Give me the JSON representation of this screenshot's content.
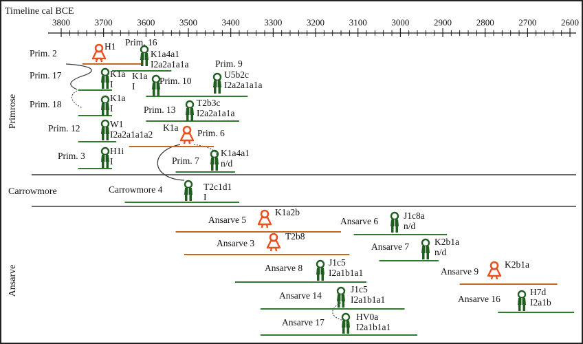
{
  "title": "Timeline cal BCE",
  "axis": {
    "ticks": [
      "3800",
      "3700",
      "3600",
      "3500",
      "3400",
      "3300",
      "3200",
      "3100",
      "3000",
      "2900",
      "2800",
      "2700",
      "2600"
    ]
  },
  "colors": {
    "female": "#e8501e",
    "male": "#1f5e1f",
    "range_female": "#c8661e",
    "range_male": "#2f7a2f"
  },
  "groups": [
    {
      "id": "primrose",
      "label": "Primrose"
    },
    {
      "id": "carrowmore",
      "label": "Carrowmore"
    },
    {
      "id": "ansarve",
      "label": "Ansarve"
    }
  ],
  "individuals": [
    {
      "id": "prim2",
      "name": "Prim. 2",
      "sex": "female",
      "codes": [
        "H1"
      ]
    },
    {
      "id": "prim16",
      "name": "Prim. 16",
      "sex": "male",
      "codes": [
        "K1a4a1",
        "I2a2a1a1a"
      ]
    },
    {
      "id": "prim17",
      "name": "Prim. 17",
      "sex": "male",
      "codes": [
        "K1a",
        "I"
      ]
    },
    {
      "id": "prim10",
      "name": "Prim. 10",
      "sex": "male",
      "codes": [
        "K1a",
        "I"
      ]
    },
    {
      "id": "prim9",
      "name": "Prim. 9",
      "sex": "male",
      "codes": [
        "U5b2c",
        "I2a2a1a1a"
      ]
    },
    {
      "id": "prim18",
      "name": "Prim. 18",
      "sex": "male",
      "codes": [
        "K1a",
        "I"
      ]
    },
    {
      "id": "prim13",
      "name": "Prim. 13",
      "sex": "male",
      "codes": [
        "T2b3c",
        "I2a2a1a1a"
      ]
    },
    {
      "id": "prim12",
      "name": "Prim. 12",
      "sex": "male",
      "codes": [
        "W1",
        "I2a2a1a1a2"
      ]
    },
    {
      "id": "prim6",
      "name": "Prim. 6",
      "sex": "female",
      "codes": [
        "K1a"
      ]
    },
    {
      "id": "prim3",
      "name": "Prim. 3",
      "sex": "male",
      "codes": [
        "H1i",
        "I"
      ]
    },
    {
      "id": "prim7",
      "name": "Prim. 7",
      "sex": "male",
      "codes": [
        "K1a4a1",
        "n/d"
      ]
    },
    {
      "id": "carrowmore4",
      "name": "Carrowmore 4",
      "sex": "male",
      "codes": [
        "T2c1d1",
        "I"
      ]
    },
    {
      "id": "ansarve5",
      "name": "Ansarve 5",
      "sex": "female",
      "codes": [
        "K1a2b"
      ]
    },
    {
      "id": "ansarve6",
      "name": "Ansarve 6",
      "sex": "male",
      "codes": [
        "J1c8a",
        "n/d"
      ]
    },
    {
      "id": "ansarve3",
      "name": "Ansarve 3",
      "sex": "female",
      "codes": [
        "T2b8"
      ]
    },
    {
      "id": "ansarve7",
      "name": "Ansarve 7",
      "sex": "male",
      "codes": [
        "K2b1a",
        "n/d"
      ]
    },
    {
      "id": "ansarve8",
      "name": "Ansarve 8",
      "sex": "male",
      "codes": [
        "J1c5",
        "I2a1b1a1"
      ]
    },
    {
      "id": "ansarve9",
      "name": "Ansarve 9",
      "sex": "female",
      "codes": [
        "K2b1a"
      ]
    },
    {
      "id": "ansarve14",
      "name": "Ansarve 14",
      "sex": "male",
      "codes": [
        "J1c5",
        "I2a1b1a1"
      ]
    },
    {
      "id": "ansarve16",
      "name": "Ansarve 16",
      "sex": "male",
      "codes": [
        "H7d",
        "I2a1b"
      ]
    },
    {
      "id": "ansarve17",
      "name": "Ansarve 17",
      "sex": "male",
      "codes": [
        "HV0a",
        "I2a1b1a1"
      ]
    }
  ],
  "ranges": [
    {
      "id": "prim2",
      "from": 3750,
      "to": 3610
    },
    {
      "id": "prim16",
      "from": 3680,
      "to": 3540
    },
    {
      "id": "prim17",
      "from": 3760,
      "to": 3680
    },
    {
      "id": "prim10",
      "from": 3600,
      "to": 3510
    },
    {
      "id": "prim9",
      "from": 3510,
      "to": 3360
    },
    {
      "id": "prim18",
      "from": 3760,
      "to": 3680
    },
    {
      "id": "prim13",
      "from": 3600,
      "to": 3380
    },
    {
      "id": "prim12",
      "from": 3760,
      "to": 3670
    },
    {
      "id": "prim6",
      "from": 3640,
      "to": 3440
    },
    {
      "id": "prim3",
      "from": 3760,
      "to": 3680
    },
    {
      "id": "prim7",
      "from": 3530,
      "to": 3390
    },
    {
      "id": "carrowmore4",
      "from": 3650,
      "to": 3380
    },
    {
      "id": "ansarve5",
      "from": 3530,
      "to": 3140
    },
    {
      "id": "ansarve6",
      "from": 3110,
      "to": 2890
    },
    {
      "id": "ansarve3",
      "from": 3510,
      "to": 3120
    },
    {
      "id": "ansarve7",
      "from": 3050,
      "to": 2910
    },
    {
      "id": "ansarve8",
      "from": 3390,
      "to": 3080
    },
    {
      "id": "ansarve9",
      "from": 2860,
      "to": 2630
    },
    {
      "id": "ansarve14",
      "from": 3330,
      "to": 2990
    },
    {
      "id": "ansarve16",
      "from": 2770,
      "to": 2590
    },
    {
      "id": "ansarve17",
      "from": 3330,
      "to": 2960
    }
  ]
}
